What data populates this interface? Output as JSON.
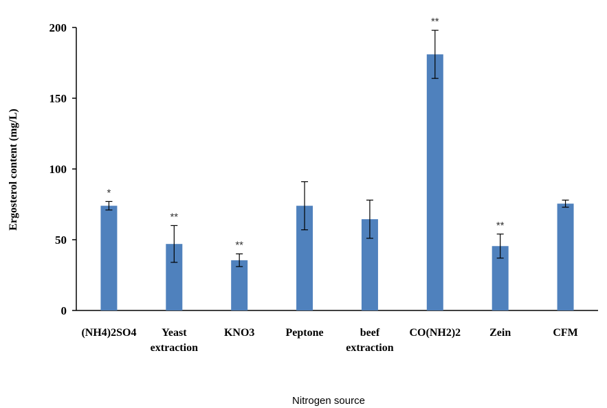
{
  "chart_data": {
    "type": "bar",
    "title": "",
    "xlabel": "Nitrogen source",
    "ylabel": "Ergosterol content (mg/L)",
    "ylim": [
      0,
      200
    ],
    "yticks": [
      "0",
      "50",
      "100",
      "150",
      "200"
    ],
    "grid": false,
    "legend": "none",
    "bar_color": "#4F81BD",
    "categories": [
      [
        "(NH4)2SO4"
      ],
      [
        "Yeast",
        "extraction"
      ],
      [
        "KNO3"
      ],
      [
        "Peptone"
      ],
      [
        "beef",
        "extraction"
      ],
      [
        "CO(NH2)2"
      ],
      [
        "Zein"
      ],
      [
        "CFM"
      ]
    ],
    "values": [
      74,
      47,
      35.5,
      74,
      64.5,
      181,
      45.5,
      75.5
    ],
    "errors": [
      3,
      13,
      4.5,
      17,
      13.5,
      17,
      8.5,
      2.5
    ],
    "significance": [
      "*",
      "**",
      "**",
      "",
      "",
      "**",
      "**",
      ""
    ]
  }
}
